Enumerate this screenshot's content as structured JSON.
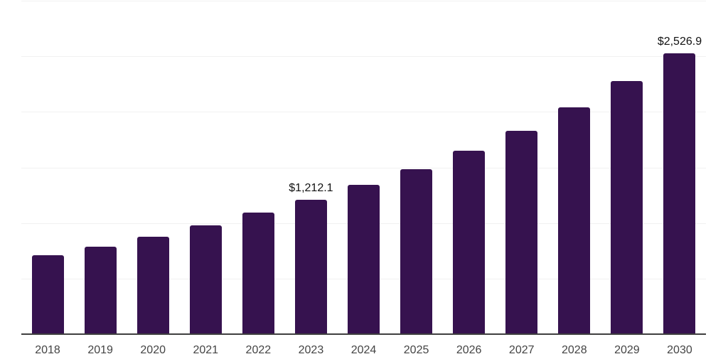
{
  "chart_data": {
    "type": "bar",
    "title": "",
    "xlabel": "",
    "ylabel": "",
    "categories": [
      "2018",
      "2019",
      "2020",
      "2021",
      "2022",
      "2023",
      "2024",
      "2025",
      "2026",
      "2027",
      "2028",
      "2029",
      "2030"
    ],
    "values": [
      708,
      786,
      875,
      977,
      1094,
      1212.1,
      1344,
      1487,
      1653,
      1829,
      2038,
      2274,
      2526.9
    ],
    "value_labels": [
      {
        "category": "2023",
        "text": "$1,212.1"
      },
      {
        "category": "2030",
        "text": "$2,526.9"
      }
    ],
    "ylim": [
      0,
      3000
    ],
    "gridline_step": 500,
    "grid": true,
    "legend": "none"
  },
  "colors": {
    "background": "#ffffff",
    "bar": "#36124f",
    "gridline": "#f1f1f1",
    "axis_line": "#3f3f3f",
    "tick_label": "#444444",
    "value_label": "#111111"
  }
}
